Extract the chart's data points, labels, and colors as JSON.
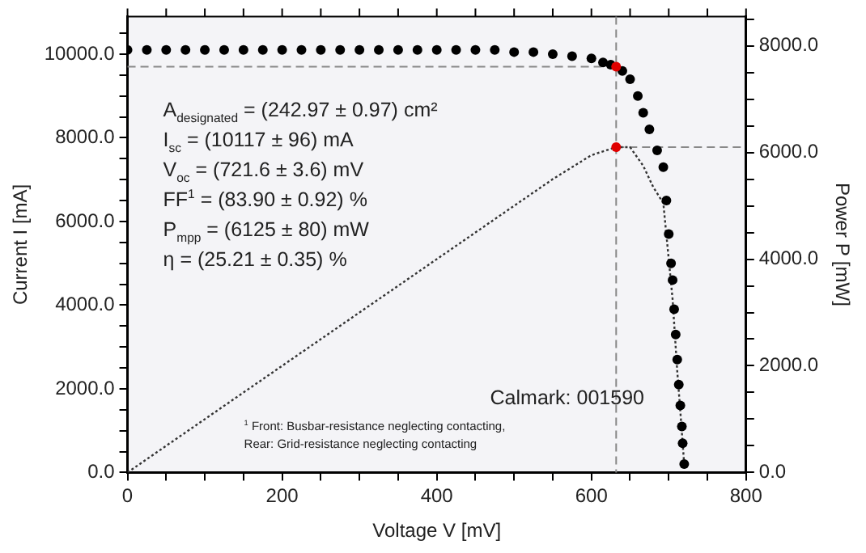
{
  "chart_data": {
    "type": "scatter",
    "xlabel": "Voltage V [mV]",
    "ylabel": "Current I [mA]",
    "y2label": "Power P [mW]",
    "xlim": [
      0,
      800
    ],
    "ylim": [
      0,
      10900
    ],
    "y2lim": [
      0,
      8550
    ],
    "xticks": [
      0,
      {
        "value": 50,
        "label": null
      },
      {
        "value": 100,
        "label": null
      },
      {
        "value": 150,
        "label": null
      },
      200,
      {
        "value": 250,
        "label": null
      },
      {
        "value": 300,
        "label": null
      },
      {
        "value": 350,
        "label": null
      },
      400,
      {
        "value": 450,
        "label": null
      },
      {
        "value": 500,
        "label": null
      },
      {
        "value": 550,
        "label": null
      },
      600,
      {
        "value": 650,
        "label": null
      },
      {
        "value": 700,
        "label": null
      },
      {
        "value": 750,
        "label": null
      },
      800
    ],
    "yticks": [
      {
        "value": 0,
        "label": "0.0"
      },
      {
        "value": 500,
        "label": null
      },
      {
        "value": 1000,
        "label": null
      },
      {
        "value": 1500,
        "label": null
      },
      {
        "value": 2000,
        "label": "2000.0"
      },
      {
        "value": 2500,
        "label": null
      },
      {
        "value": 3000,
        "label": null
      },
      {
        "value": 3500,
        "label": null
      },
      {
        "value": 4000,
        "label": "4000.0"
      },
      {
        "value": 4500,
        "label": null
      },
      {
        "value": 5000,
        "label": null
      },
      {
        "value": 5500,
        "label": null
      },
      {
        "value": 6000,
        "label": "6000.0"
      },
      {
        "value": 6500,
        "label": null
      },
      {
        "value": 7000,
        "label": null
      },
      {
        "value": 7500,
        "label": null
      },
      {
        "value": 8000,
        "label": "8000.0"
      },
      {
        "value": 8500,
        "label": null
      },
      {
        "value": 9000,
        "label": null
      },
      {
        "value": 9500,
        "label": null
      },
      {
        "value": 10000,
        "label": "10000.0"
      },
      {
        "value": 10500,
        "label": null
      }
    ],
    "y2ticks": [
      {
        "value": 0,
        "label": "0.0"
      },
      {
        "value": 500,
        "label": null
      },
      {
        "value": 1000,
        "label": null
      },
      {
        "value": 1500,
        "label": null
      },
      {
        "value": 2000,
        "label": "2000.0"
      },
      {
        "value": 2500,
        "label": null
      },
      {
        "value": 3000,
        "label": null
      },
      {
        "value": 3500,
        "label": null
      },
      {
        "value": 4000,
        "label": "4000.0"
      },
      {
        "value": 4500,
        "label": null
      },
      {
        "value": 5000,
        "label": null
      },
      {
        "value": 5500,
        "label": null
      },
      {
        "value": 6000,
        "label": "6000.0"
      },
      {
        "value": 6500,
        "label": null
      },
      {
        "value": 7000,
        "label": null
      },
      {
        "value": 7500,
        "label": null
      },
      {
        "value": 8000,
        "label": "8000.0"
      },
      {
        "value": 8500,
        "label": null
      }
    ],
    "series": [
      {
        "color": "#000000",
        "marker": "circle",
        "x": [
          0,
          25,
          50,
          75,
          100,
          125,
          150,
          175,
          200,
          225,
          250,
          275,
          300,
          325,
          350,
          375,
          400,
          425,
          450,
          475,
          500,
          525,
          550,
          575,
          600,
          615,
          625,
          640,
          650,
          660,
          667,
          675,
          685,
          693,
          697,
          700,
          703,
          705,
          707,
          709,
          711,
          713,
          715,
          717,
          718,
          720
        ],
        "values": [
          10100,
          10100,
          10100,
          10100,
          10100,
          10100,
          10100,
          10100,
          10100,
          10100,
          10100,
          10100,
          10100,
          10100,
          10100,
          10100,
          10100,
          10100,
          10100,
          10100,
          10050,
          10050,
          10000,
          9950,
          9900,
          9800,
          9750,
          9600,
          9400,
          9000,
          8600,
          8200,
          7700,
          7300,
          6500,
          5700,
          5000,
          4600,
          3900,
          3300,
          2700,
          2100,
          1600,
          1100,
          700,
          200
        ]
      },
      {
        "type": "line",
        "axis": "y2",
        "color": "#333333",
        "marker": "none",
        "line_style": "dotted",
        "x": [
          0,
          100,
          200,
          300,
          400,
          500,
          550,
          600,
          632,
          650,
          667,
          680,
          693,
          700,
          705,
          711,
          715,
          720
        ],
        "values": [
          0,
          1000,
          2000,
          3000,
          4000,
          5000,
          5500,
          5950,
          6100,
          6100,
          5750,
          5350,
          5050,
          4000,
          3250,
          1900,
          1150,
          150
        ]
      },
      {
        "color": "#e00000",
        "marker": "circle",
        "x": [
          632
        ],
        "values": [
          9700
        ]
      },
      {
        "axis": "y2",
        "color": "#e00000",
        "marker": "circle",
        "x": [
          632
        ],
        "values": [
          6100
        ]
      }
    ],
    "ref_lines": [
      {
        "axis": "x",
        "value": 632,
        "color": "#888888",
        "line_style": "dashed"
      },
      {
        "axis": "y",
        "value": 9700,
        "color": "#888888",
        "line_style": "dashed"
      },
      {
        "axis": "y2",
        "value": 6100,
        "color": "#888888",
        "line_style": "dashed"
      }
    ],
    "annotations": [
      "A$_{designated}$ = (242.97 ± 0.97) cm²",
      "I$_{sc}$ = (10117 ± 96) mA",
      "V$_{oc}$ = (721.6 ± 3.6) mV",
      "FF$^{1}$ = (83.90 ± 0.92) %",
      "P$_{mpp}$ = (6125 ± 80) mW",
      "η = (25.21 ± 0.35) %",
      "Calmark: 001590",
      "$^{1}$ Front: Busbar-resistance neglecting contacting,",
      "Rear: Grid-resistance neglecting contacting"
    ],
    "grid": false,
    "legend": false
  }
}
